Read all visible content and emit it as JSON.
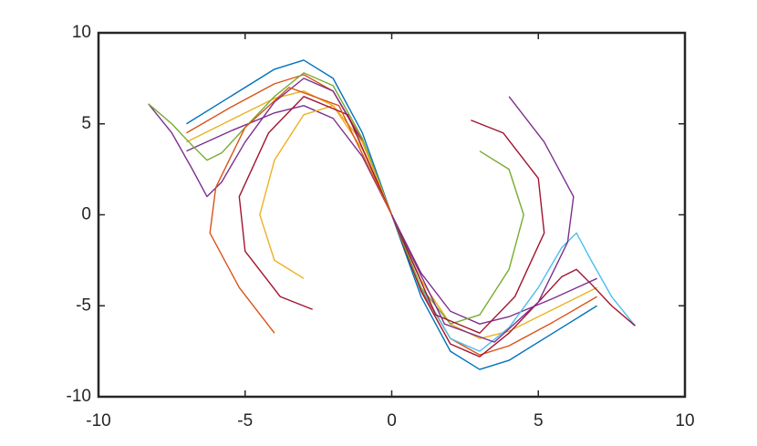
{
  "chart_data": {
    "type": "line",
    "xlim": [
      -10,
      10
    ],
    "ylim": [
      -10,
      10
    ],
    "xticks": [
      -10,
      -5,
      0,
      5,
      10
    ],
    "yticks": [
      -10,
      -5,
      0,
      5,
      10
    ],
    "series": [
      {
        "color": "#0072BD",
        "x": [
          -7,
          -5.5,
          -4,
          -3,
          -2,
          -1,
          0,
          1,
          2,
          3,
          4,
          5.5,
          7
        ],
        "y": [
          5,
          6.5,
          8,
          8.5,
          7.5,
          4.5,
          0,
          -4.5,
          -7.5,
          -8.5,
          -8,
          -6.5,
          -5
        ]
      },
      {
        "color": "#D95319",
        "x": [
          -7,
          -5.5,
          -4,
          -3,
          -2,
          -1,
          0,
          1,
          2,
          3,
          4,
          5.5,
          7
        ],
        "y": [
          4.5,
          5.9,
          7.2,
          7.7,
          6.8,
          4.1,
          0,
          -4.1,
          -6.8,
          -7.7,
          -7.2,
          -5.9,
          -4.5
        ]
      },
      {
        "color": "#EDB120",
        "x": [
          -7,
          -5.5,
          -4,
          -3,
          -2,
          -1,
          0,
          1,
          2,
          3,
          4,
          5.5,
          7
        ],
        "y": [
          4,
          5.2,
          6.4,
          6.8,
          6,
          3.6,
          0,
          -3.6,
          -6,
          -6.8,
          -6.4,
          -5.2,
          -4
        ]
      },
      {
        "color": "#7E2F8E",
        "x": [
          -7,
          -5.5,
          -4,
          -3,
          -2,
          -1,
          0,
          1,
          2,
          3,
          4,
          5.5,
          7
        ],
        "y": [
          3.5,
          4.6,
          5.6,
          6,
          5.3,
          3.2,
          0,
          -3.2,
          -5.3,
          -6,
          -5.6,
          -4.6,
          -3.5
        ]
      },
      {
        "color": "#7E2F8E",
        "x": [
          -8.3,
          -7.5,
          -6.8,
          -6.3,
          -5.8,
          -5,
          -4,
          -3,
          -2,
          -1,
          0
        ],
        "y": [
          6.1,
          4.5,
          2.5,
          1,
          1.8,
          4,
          6.2,
          7.5,
          6.8,
          4,
          0
        ]
      },
      {
        "color": "#77AC30",
        "x": [
          -8.3,
          -7.5,
          -6.8,
          -6.3,
          -5.8,
          -5,
          -4,
          -3,
          -2,
          -1,
          0
        ],
        "y": [
          6.1,
          5,
          3.8,
          3,
          3.4,
          4.8,
          6.5,
          7.8,
          7.1,
          4.2,
          0
        ]
      },
      {
        "color": "#4DBEEE",
        "x": [
          8.3,
          7.5,
          6.8,
          6.3,
          5.8,
          5,
          4,
          3,
          2,
          1,
          0
        ],
        "y": [
          -6.1,
          -4.5,
          -2.5,
          -1,
          -1.8,
          -4,
          -6.2,
          -7.5,
          -6.8,
          -4,
          0
        ]
      },
      {
        "color": "#A2142F",
        "x": [
          8.3,
          7.5,
          6.8,
          6.3,
          5.8,
          5,
          4,
          3,
          2,
          1,
          0
        ],
        "y": [
          -6.1,
          -5,
          -3.8,
          -3,
          -3.4,
          -4.8,
          -6.5,
          -7.8,
          -7.1,
          -4.2,
          0
        ]
      },
      {
        "color": "#EDB120",
        "x": [
          -3,
          -4,
          -4.5,
          -4,
          -3,
          -2,
          -1,
          0
        ],
        "y": [
          -3.5,
          -2.5,
          0,
          3,
          5.5,
          6,
          4,
          0
        ]
      },
      {
        "color": "#A2142F",
        "x": [
          -2.7,
          -3.8,
          -5,
          -5.2,
          -4.2,
          -3,
          -1.5,
          0
        ],
        "y": [
          -5.2,
          -4.5,
          -2,
          1,
          4.5,
          6.5,
          5.5,
          0
        ]
      },
      {
        "color": "#D95319",
        "x": [
          -4,
          -5.2,
          -6.2,
          -6,
          -5,
          -3.5,
          -1.8,
          0
        ],
        "y": [
          -6.5,
          -4,
          -1,
          1.5,
          4.8,
          7,
          6,
          0
        ]
      },
      {
        "color": "#77AC30",
        "x": [
          3,
          4,
          4.5,
          4,
          3,
          2,
          1,
          0
        ],
        "y": [
          3.5,
          2.5,
          0,
          -3,
          -5.5,
          -6,
          -4,
          0
        ]
      },
      {
        "color": "#A2142F",
        "x": [
          2.7,
          3.8,
          5,
          5.2,
          4.2,
          3,
          1.5,
          0
        ],
        "y": [
          5.2,
          4.5,
          2,
          -1,
          -4.5,
          -6.5,
          -5.5,
          0
        ]
      },
      {
        "color": "#7E2F8E",
        "x": [
          4,
          5.2,
          6.2,
          6,
          5,
          3.5,
          1.8,
          0
        ],
        "y": [
          6.5,
          4,
          1,
          -1.5,
          -4.8,
          -7,
          -6,
          0
        ]
      }
    ]
  }
}
